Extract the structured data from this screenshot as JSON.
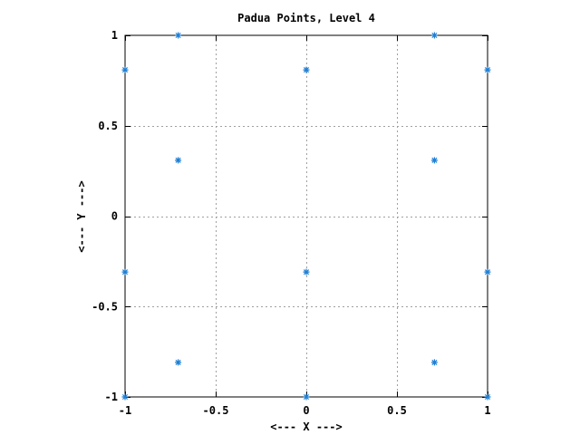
{
  "chart_data": {
    "type": "scatter",
    "title": "Padua Points, Level 4",
    "xlabel": "<--- X --->",
    "ylabel": "<--- Y --->",
    "xlim": [
      -1,
      1
    ],
    "ylim": [
      -1,
      1
    ],
    "xticks": [
      -1,
      -0.5,
      0,
      0.5,
      1
    ],
    "xtick_labels": [
      "-1",
      "-0.5",
      "0",
      "0.5",
      "1"
    ],
    "yticks": [
      -1,
      -0.5,
      0,
      0.5,
      1
    ],
    "ytick_labels": [
      "-1",
      "-0.5",
      "0",
      "0.5",
      "1"
    ],
    "grid": true,
    "marker": "asterisk",
    "marker_color": "#1f7fd4",
    "series": [
      {
        "x": [
          -1,
          -1,
          -1,
          -0.707,
          -0.707,
          -0.707,
          0,
          0,
          0,
          0.707,
          0.707,
          0.707,
          1,
          1,
          1
        ],
        "y": [
          0.809,
          -0.309,
          -1,
          1,
          0.309,
          -0.809,
          0.809,
          -0.309,
          -1,
          1,
          0.309,
          -0.809,
          0.809,
          -0.309,
          -1
        ]
      }
    ]
  }
}
